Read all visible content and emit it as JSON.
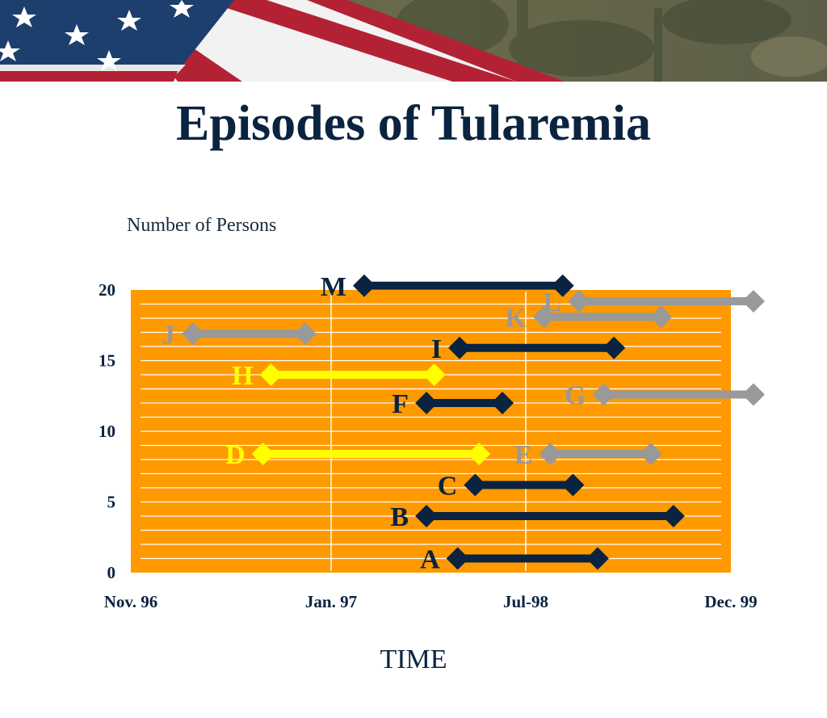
{
  "title": "Episodes of Tularemia",
  "chart_data": {
    "type": "range-bar",
    "title": "Episodes of Tularemia",
    "ylabel": "Number of Persons",
    "xlabel": "TIME",
    "x_ticks": [
      "Nov. 96",
      "Jan. 97",
      "Jul-98",
      "Dec. 99"
    ],
    "xlim": [
      0,
      3
    ],
    "y_ticks": [
      "0",
      "5",
      "10",
      "15",
      "20"
    ],
    "ylim": [
      0,
      20
    ],
    "grid": true,
    "colors": {
      "background": "#ff9900",
      "grid": "#ffffff",
      "navy": "#0a2340",
      "yellow": "#ffff00",
      "gray": "#999999"
    },
    "episodes": [
      {
        "label": "A",
        "start": 1.65,
        "end": 2.35,
        "y": 1.0,
        "color": "navy"
      },
      {
        "label": "B",
        "start": 1.49,
        "end": 2.72,
        "y": 4.0,
        "color": "navy"
      },
      {
        "label": "C",
        "start": 1.74,
        "end": 2.23,
        "y": 6.2,
        "color": "navy"
      },
      {
        "label": "D",
        "start": 0.66,
        "end": 1.76,
        "y": 8.4,
        "color": "yellow"
      },
      {
        "label": "E",
        "start": 2.12,
        "end": 2.61,
        "y": 8.4,
        "color": "gray"
      },
      {
        "label": "F",
        "start": 1.49,
        "end": 1.88,
        "y": 12.0,
        "color": "navy"
      },
      {
        "label": "G",
        "start": 2.38,
        "end": 3.11,
        "y": 12.6,
        "color": "gray"
      },
      {
        "label": "H",
        "start": 0.7,
        "end": 1.53,
        "y": 14.0,
        "color": "yellow"
      },
      {
        "label": "I",
        "start": 1.66,
        "end": 2.43,
        "y": 15.9,
        "color": "navy"
      },
      {
        "label": "J",
        "start": 0.31,
        "end": 0.87,
        "y": 16.9,
        "color": "gray"
      },
      {
        "label": "K",
        "start": 2.09,
        "end": 2.66,
        "y": 18.1,
        "color": "gray"
      },
      {
        "label": "L",
        "start": 2.26,
        "end": 3.11,
        "y": 19.2,
        "color": "gray"
      },
      {
        "label": "M",
        "start": 1.17,
        "end": 2.18,
        "y": 20.3,
        "color": "navy"
      }
    ]
  }
}
